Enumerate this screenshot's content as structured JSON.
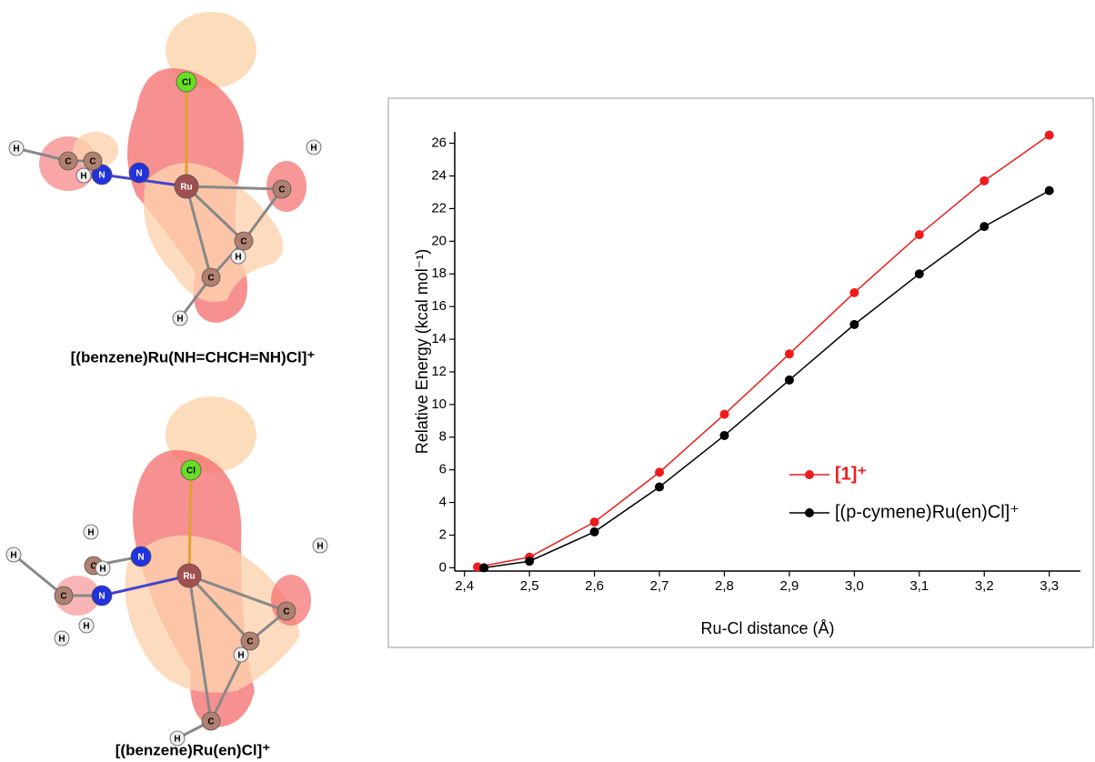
{
  "molecules": [
    {
      "caption": "[(benzene)Ru(NH=CHCH=NH)Cl]⁺",
      "atoms": [
        "Cl",
        "Ru",
        "N",
        "N",
        "C",
        "C",
        "C",
        "C",
        "C",
        "H",
        "H",
        "H",
        "H",
        "H"
      ]
    },
    {
      "caption": "[(benzene)Ru(en)Cl]⁺",
      "atoms": [
        "Cl",
        "Ru",
        "N",
        "N",
        "C",
        "C",
        "C",
        "C",
        "C",
        "H",
        "H",
        "H",
        "H",
        "H",
        "H",
        "H",
        "H"
      ]
    }
  ],
  "chart_data": {
    "type": "line",
    "xlabel": "Ru-Cl distance (Å)",
    "ylabel": "Relative Energy (kcal mol⁻¹)",
    "xlim": [
      2.385,
      3.348
    ],
    "ylim": [
      -0.2,
      26.7
    ],
    "xticks": [
      {
        "value": 2.4,
        "label": "2,4"
      },
      {
        "value": 2.5,
        "label": "2,5"
      },
      {
        "value": 2.6,
        "label": "2,6"
      },
      {
        "value": 2.7,
        "label": "2,7"
      },
      {
        "value": 2.8,
        "label": "2,8"
      },
      {
        "value": 2.9,
        "label": "2,9"
      },
      {
        "value": 3.0,
        "label": "3,0"
      },
      {
        "value": 3.1,
        "label": "3,1"
      },
      {
        "value": 3.2,
        "label": "3,2"
      },
      {
        "value": 3.3,
        "label": "3,3"
      }
    ],
    "yticks": [
      0,
      2,
      4,
      6,
      8,
      10,
      12,
      14,
      16,
      18,
      20,
      22,
      24,
      26
    ],
    "series": [
      {
        "name": "[1]⁺",
        "color": "#ee1c1c",
        "x": [
          2.42,
          2.5,
          2.6,
          2.7,
          2.8,
          2.9,
          3.0,
          3.1,
          3.2,
          3.3
        ],
        "values": [
          0.05,
          0.65,
          2.8,
          5.85,
          9.4,
          13.1,
          16.85,
          20.4,
          23.7,
          26.5
        ]
      },
      {
        "name": "[(p-cymene)Ru(en)Cl]⁺",
        "color": "#000000",
        "x": [
          2.43,
          2.5,
          2.6,
          2.7,
          2.8,
          2.9,
          3.0,
          3.1,
          3.2,
          3.3
        ],
        "values": [
          0,
          0.4,
          2.2,
          4.95,
          8.1,
          11.5,
          14.9,
          18.0,
          20.9,
          23.1
        ]
      }
    ],
    "legend": "right"
  }
}
